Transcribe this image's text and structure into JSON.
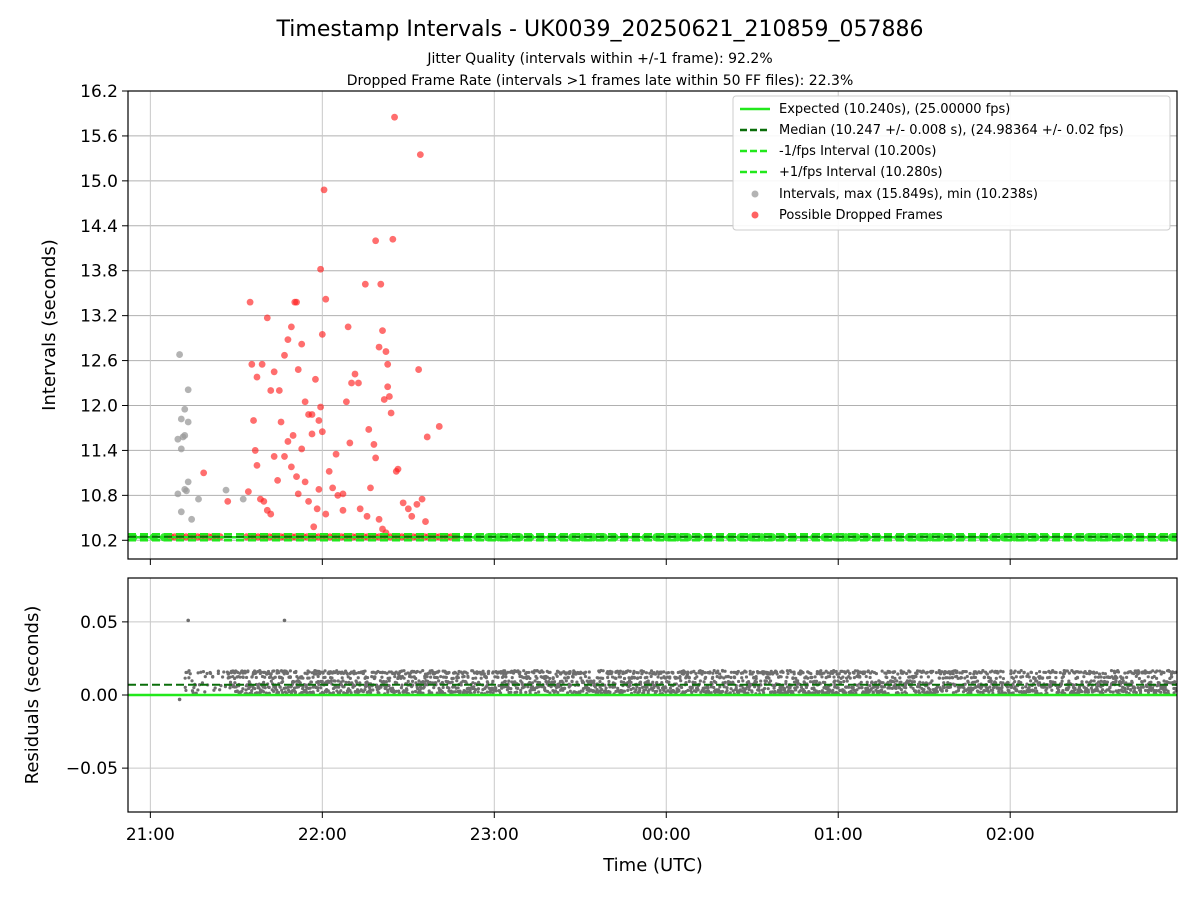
{
  "chart_data": [
    {
      "type": "scatter",
      "title": "Timestamp Intervals - UK0039_20250621_210859_057886",
      "subtitle_lines": [
        "Jitter Quality (intervals within +/-1 frame): 92.2%",
        "Dropped Frame Rate (intervals >1 frames late within 50 FF files): 22.3%"
      ],
      "ylabel": "Intervals (seconds)",
      "ylim": [
        9.95,
        16.2
      ],
      "yticks": [
        "10.2",
        "10.8",
        "11.4",
        "12.0",
        "12.6",
        "13.2",
        "13.8",
        "14.4",
        "15.0",
        "15.6",
        "16.2"
      ],
      "xlim_hours": [
        20.87,
        26.97
      ],
      "grid": true,
      "legend_position": "top-right",
      "legend": [
        "Expected (10.240s), (25.00000 fps)",
        "Median (10.247 +/- 0.008 s), (24.98364 +/- 0.02 fps)",
        "-1/fps Interval (10.200s)",
        "+1/fps Interval (10.280s)",
        "Intervals, max (15.849s), min (10.238s)",
        "Possible Dropped Frames"
      ],
      "lines": {
        "expected": 10.24,
        "median": 10.247,
        "minus_one_frame": 10.2,
        "plus_one_frame": 10.28
      },
      "colors": {
        "expected": "#22e81c",
        "median": "#0a6e0a",
        "interval_band": "#22e81c",
        "intervals": "#9a9a9a",
        "dropped": "#ff2020"
      },
      "intervals_gray": [
        [
          21.17,
          12.68
        ],
        [
          21.22,
          12.21
        ],
        [
          21.2,
          11.95
        ],
        [
          21.18,
          11.82
        ],
        [
          21.22,
          11.78
        ],
        [
          21.19,
          11.58
        ],
        [
          21.16,
          11.55
        ],
        [
          21.2,
          11.6
        ],
        [
          21.18,
          11.42
        ],
        [
          21.22,
          10.98
        ],
        [
          21.2,
          10.88
        ],
        [
          21.21,
          10.86
        ],
        [
          21.16,
          10.82
        ],
        [
          21.28,
          10.75
        ],
        [
          21.18,
          10.58
        ],
        [
          21.24,
          10.48
        ],
        [
          21.44,
          10.87
        ],
        [
          21.54,
          10.75
        ]
      ],
      "dropped_frames": [
        [
          21.31,
          11.1
        ],
        [
          21.45,
          10.72
        ],
        [
          21.57,
          10.85
        ],
        [
          21.58,
          13.38
        ],
        [
          21.59,
          12.55
        ],
        [
          21.62,
          12.38
        ],
        [
          21.65,
          12.55
        ],
        [
          21.68,
          13.17
        ],
        [
          21.7,
          12.2
        ],
        [
          21.72,
          12.45
        ],
        [
          21.75,
          12.2
        ],
        [
          21.78,
          12.67
        ],
        [
          21.8,
          12.88
        ],
        [
          21.82,
          13.05
        ],
        [
          21.84,
          13.38
        ],
        [
          21.85,
          13.38
        ],
        [
          21.86,
          12.48
        ],
        [
          21.88,
          12.82
        ],
        [
          21.9,
          12.05
        ],
        [
          21.92,
          11.88
        ],
        [
          21.94,
          11.88
        ],
        [
          21.96,
          12.35
        ],
        [
          21.98,
          11.8
        ],
        [
          21.99,
          13.82
        ],
        [
          22.0,
          12.95
        ],
        [
          22.01,
          14.88
        ],
        [
          22.02,
          13.42
        ],
        [
          22.04,
          11.12
        ],
        [
          22.06,
          10.9
        ],
        [
          22.08,
          11.35
        ],
        [
          22.12,
          10.82
        ],
        [
          22.14,
          12.05
        ],
        [
          22.15,
          13.05
        ],
        [
          22.17,
          12.3
        ],
        [
          22.19,
          12.42
        ],
        [
          22.21,
          12.3
        ],
        [
          22.25,
          13.62
        ],
        [
          22.27,
          11.68
        ],
        [
          22.3,
          11.48
        ],
        [
          22.31,
          14.2
        ],
        [
          22.33,
          12.78
        ],
        [
          22.34,
          13.62
        ],
        [
          22.35,
          13.0
        ],
        [
          22.36,
          12.08
        ],
        [
          22.37,
          12.72
        ],
        [
          22.38,
          12.55
        ],
        [
          22.38,
          12.25
        ],
        [
          22.39,
          12.12
        ],
        [
          22.4,
          11.9
        ],
        [
          22.42,
          15.85
        ],
        [
          22.41,
          14.22
        ],
        [
          22.43,
          11.12
        ],
        [
          22.44,
          11.15
        ],
        [
          22.47,
          10.7
        ],
        [
          22.5,
          10.62
        ],
        [
          22.52,
          10.52
        ],
        [
          22.55,
          10.68
        ],
        [
          22.56,
          12.48
        ],
        [
          22.57,
          15.35
        ],
        [
          22.58,
          10.75
        ],
        [
          22.6,
          10.45
        ],
        [
          22.61,
          11.58
        ],
        [
          22.68,
          11.72
        ],
        [
          21.6,
          11.8
        ],
        [
          21.61,
          11.4
        ],
        [
          21.62,
          11.2
        ],
        [
          21.64,
          10.75
        ],
        [
          21.66,
          10.72
        ],
        [
          21.68,
          10.6
        ],
        [
          21.7,
          10.55
        ],
        [
          21.72,
          11.32
        ],
        [
          21.74,
          11.0
        ],
        [
          21.76,
          11.78
        ],
        [
          21.78,
          11.32
        ],
        [
          21.8,
          11.52
        ],
        [
          21.82,
          11.18
        ],
        [
          21.83,
          11.6
        ],
        [
          21.85,
          11.05
        ],
        [
          21.86,
          10.82
        ],
        [
          21.88,
          11.42
        ],
        [
          21.9,
          10.98
        ],
        [
          21.92,
          10.72
        ],
        [
          21.94,
          11.62
        ],
        [
          21.95,
          10.38
        ],
        [
          21.97,
          10.62
        ],
        [
          21.98,
          10.88
        ],
        [
          21.99,
          11.98
        ],
        [
          22.0,
          11.65
        ],
        [
          22.02,
          10.55
        ],
        [
          22.09,
          10.8
        ],
        [
          22.12,
          10.6
        ],
        [
          22.16,
          11.5
        ],
        [
          22.22,
          10.62
        ],
        [
          22.26,
          10.52
        ],
        [
          22.28,
          10.9
        ],
        [
          22.31,
          11.3
        ],
        [
          22.33,
          10.48
        ],
        [
          22.35,
          10.35
        ],
        [
          22.37,
          10.3
        ]
      ],
      "xticks": [
        "21:00",
        "22:00",
        "23:00",
        "00:00",
        "01:00",
        "02:00"
      ],
      "xticks_hours": [
        21,
        22,
        23,
        24,
        25,
        26
      ]
    },
    {
      "type": "scatter",
      "ylabel": "Residuals (seconds)",
      "xlabel": "Time (UTC)",
      "ylim": [
        -0.08,
        0.08
      ],
      "yticks": [
        "0.05",
        "0.00",
        "−0.05"
      ],
      "yticks_values": [
        0.05,
        0.0,
        -0.05
      ],
      "grid": true,
      "lines": {
        "expected": 0.0,
        "median": 0.007
      },
      "outliers": [
        [
          21.22,
          0.051
        ],
        [
          21.78,
          0.051
        ],
        [
          21.17,
          -0.003
        ]
      ],
      "band": {
        "low": 0.0,
        "high": 0.017,
        "x_start": 21.2,
        "x_end": 26.97,
        "x_start_full": 21.45
      },
      "colors": {
        "points": "#6e6e6e",
        "expected": "#22e81c",
        "median": "#0a6e0a"
      }
    }
  ]
}
